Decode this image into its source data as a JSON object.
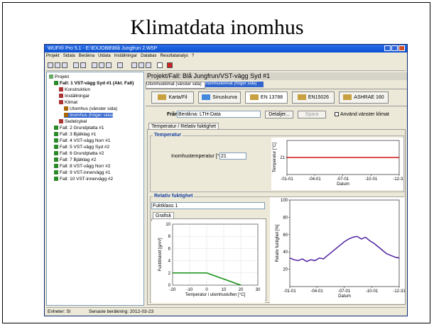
{
  "slide_title": "Klimatdata inomhus",
  "window": {
    "title": "WUFI® Pro 5.1 - E:\\EXJOBB\\Blå Jungfrun 2.W5P",
    "menu": [
      "Projekt",
      "Sidata",
      "Beräkna",
      "Utdata",
      "Inställningar",
      "Databas",
      "Resultatanalys",
      "?"
    ]
  },
  "tree": [
    {
      "label": "Projekt",
      "level": 0
    },
    {
      "label": "Fall: 1 VST-vägg Syd #1 (Akt. Fall)",
      "level": 1
    },
    {
      "label": "Konstruktion",
      "level": 2
    },
    {
      "label": "Inställningar",
      "level": 2
    },
    {
      "label": "Klimat",
      "level": 2
    },
    {
      "label": "Utomhus (vänster sida)",
      "level": 3
    },
    {
      "label": "Inomhus (höger sida)",
      "level": 3
    },
    {
      "label": "Sedelcykel",
      "level": 2
    },
    {
      "label": "Fall: 2 Grundplatta #1",
      "level": 1
    },
    {
      "label": "Fall: 3 Bjälklag #1",
      "level": 1
    },
    {
      "label": "Fall: 4 VST-vägg Norr #1",
      "level": 1
    },
    {
      "label": "Fall: 5 VST-vägg Syd #2",
      "level": 1
    },
    {
      "label": "Fall: 6 Grundplatta #2",
      "level": 1
    },
    {
      "label": "Fall: 7 Bjälklag #2",
      "level": 1
    },
    {
      "label": "Fall: 8 VST-vägg Norr #2",
      "level": 1
    },
    {
      "label": "Fall: 9 VST-innervägg #1",
      "level": 1
    },
    {
      "label": "Fall: 10 VST-innervägg #2",
      "level": 1
    }
  ],
  "panel": {
    "header": "Projekt/Fall: Blå Jungfrun/VST-vägg Syd #1",
    "tabs": [
      "Utomhusklimat (vänster sida)",
      "Inomhusklimat (höger sida)"
    ],
    "climate_buttons": [
      "Karta/Fil",
      "Sinuskurva",
      "EN 13788",
      "EN15026",
      "ASHRAE 160"
    ],
    "from_label": "Från",
    "from_value": "Beräkna: LTH-Data",
    "details": "Detaljer...",
    "save": "Spara",
    "use_left": "Använd vänster klimat",
    "subtab": "Temperatur / Relativ fuktighet",
    "temp_group": "Temperatur",
    "temp_label": "Inomhustemperatur [°C]",
    "temp_value": "21",
    "rh_group": "Relativ fuktighet",
    "rh_class": "Fuktklass 1",
    "graph_tab": "Grafisk"
  },
  "charts": [
    {
      "type": "line",
      "ylabel": "Temperatur [°C]",
      "xlabel": "Datum",
      "xlim": [
        1,
        365
      ],
      "ylim": [
        18,
        24
      ],
      "yticks": [
        21
      ],
      "xticks": [
        {
          "value": 1,
          "label": "-01-01"
        },
        {
          "value": 91,
          "label": "-04-01"
        },
        {
          "value": 182,
          "label": "-07-01"
        },
        {
          "value": 274,
          "label": "-10-01"
        },
        {
          "value": 365,
          "label": "-12-31"
        }
      ],
      "series": [
        {
          "color": "#d01010",
          "x": [
            1,
            365
          ],
          "values": [
            21,
            21
          ]
        }
      ]
    },
    {
      "type": "line",
      "ylabel": "Fukttillskott [g/m³]",
      "xlabel": "Temperatur i utomhusluften [°C]",
      "xlim": [
        -20,
        30
      ],
      "ylim": [
        0,
        10
      ],
      "grid": true,
      "xticks": [
        -20,
        -10,
        0,
        10,
        20,
        30
      ],
      "yticks": [
        0,
        2,
        4,
        6,
        8,
        10
      ],
      "series": [
        {
          "color": "#109010",
          "x": [
            -20,
            0,
            20
          ],
          "values": [
            2,
            2,
            0
          ]
        }
      ]
    },
    {
      "type": "line",
      "ylabel": "Relativ fuktighet [%]",
      "xlabel": "Datum",
      "xlim": [
        1,
        365
      ],
      "ylim": [
        0,
        100
      ],
      "yticks": [
        20,
        40,
        60,
        80,
        100
      ],
      "xticks": [
        {
          "value": 1,
          "label": "-01-01"
        },
        {
          "value": 91,
          "label": "-04-01"
        },
        {
          "value": 182,
          "label": "-07-01"
        },
        {
          "value": 274,
          "label": "-10-01"
        },
        {
          "value": 365,
          "label": "-12-31"
        }
      ],
      "series": [
        {
          "color": "#5020a0",
          "x": [
            1,
            15,
            29,
            43,
            57,
            71,
            85,
            99,
            113,
            127,
            141,
            155,
            169,
            183,
            197,
            211,
            225,
            239,
            253,
            267,
            281,
            295,
            309,
            323,
            337,
            351,
            365
          ],
          "values": [
            33,
            31,
            30,
            32,
            29,
            31,
            30,
            33,
            32,
            36,
            40,
            44,
            48,
            52,
            55,
            57,
            58,
            55,
            57,
            53,
            50,
            46,
            42,
            38,
            36,
            34,
            33
          ]
        }
      ]
    }
  ],
  "status": [
    "Enheter: SI",
    "Senaste beräkning: 2012-03-23"
  ]
}
